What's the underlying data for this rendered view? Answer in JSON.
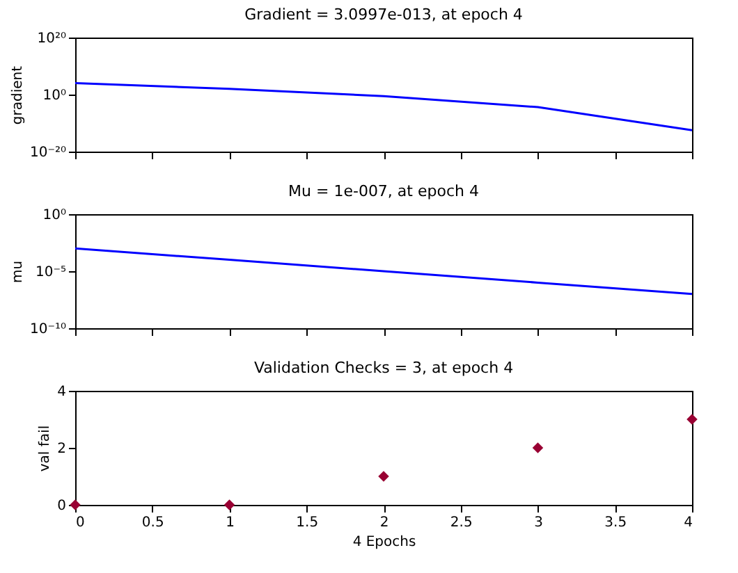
{
  "chart_data": [
    {
      "type": "line",
      "title": "Gradient = 3.0997e-013, at epoch 4",
      "ylabel": "gradient",
      "x": [
        0,
        1,
        2,
        3,
        4
      ],
      "series": [
        {
          "color": "#0000ff",
          "values": [
            10000.0,
            100.0,
            0.3,
            4e-05,
            3.0997e-13
          ]
        }
      ],
      "log": "y",
      "xlim": [
        0,
        4
      ],
      "xticks": [
        0,
        0.5,
        1,
        1.5,
        2,
        2.5,
        3,
        3.5,
        4
      ],
      "ylim": [
        1e-20,
        1e+20
      ],
      "yticks": [
        {
          "value": 1e-20,
          "label": "10⁻²⁰"
        },
        {
          "value": 1,
          "label": "10⁰"
        },
        {
          "value": 1e+20,
          "label": "10²⁰"
        }
      ],
      "tick_labels": "y",
      "grid": false,
      "marker": "none",
      "line_style": "solid"
    },
    {
      "type": "line",
      "title": "Mu = 1e-007, at epoch 4",
      "ylabel": "mu",
      "x": [
        0,
        1,
        2,
        3,
        4
      ],
      "series": [
        {
          "color": "#0000ff",
          "values": [
            0.001,
            0.0001,
            1e-05,
            1e-06,
            1e-07
          ]
        }
      ],
      "log": "y",
      "xlim": [
        0,
        4
      ],
      "xticks": [
        0,
        0.5,
        1,
        1.5,
        2,
        2.5,
        3,
        3.5,
        4
      ],
      "ylim": [
        1e-10,
        1
      ],
      "yticks": [
        {
          "value": 1e-10,
          "label": "10⁻¹⁰"
        },
        {
          "value": 1e-05,
          "label": "10⁻⁵"
        },
        {
          "value": 1,
          "label": "10⁰"
        }
      ],
      "tick_labels": "y",
      "grid": false,
      "marker": "none",
      "line_style": "solid"
    },
    {
      "type": "scatter",
      "title": "Validation Checks = 3, at epoch 4",
      "xlabel": "4 Epochs",
      "ylabel": "val fail",
      "x": [
        0,
        1,
        2,
        3,
        4
      ],
      "series": [
        {
          "color": "#990033",
          "values": [
            0,
            0,
            1,
            2,
            3
          ]
        }
      ],
      "xlim": [
        0,
        4
      ],
      "xticks": [
        0,
        0.5,
        1,
        1.5,
        2,
        2.5,
        3,
        3.5,
        4
      ],
      "ylim": [
        0,
        4
      ],
      "yticks": [
        0,
        2,
        4
      ],
      "grid": false,
      "marker": "diamond"
    }
  ]
}
